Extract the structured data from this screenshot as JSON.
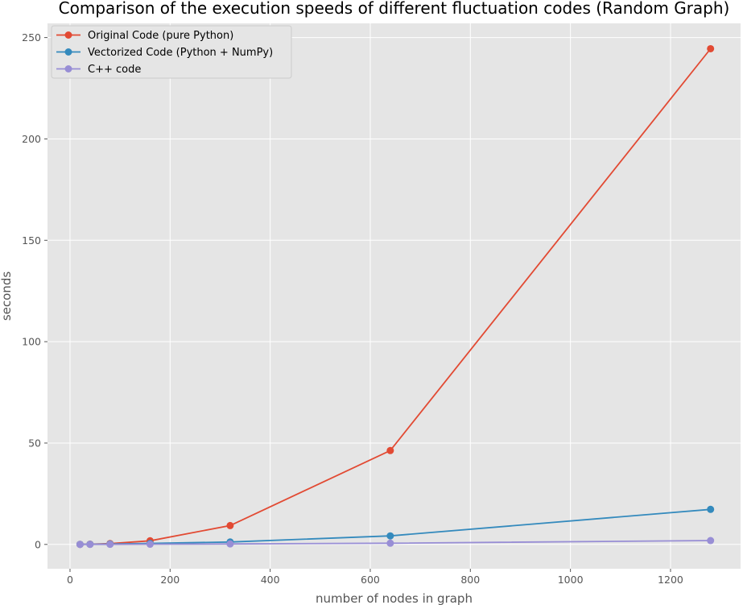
{
  "chart_data": {
    "type": "line",
    "title": "Comparison of the execution speeds of different fluctuation codes (Random Graph)",
    "xlabel": "number of nodes in graph",
    "ylabel": "seconds",
    "xlim": [
      -45,
      1340
    ],
    "ylim": [
      -12,
      257
    ],
    "xticks": [
      0,
      200,
      400,
      600,
      800,
      1000,
      1200
    ],
    "yticks": [
      0,
      50,
      100,
      150,
      200,
      250
    ],
    "grid": true,
    "legend_position": "top-left",
    "series": [
      {
        "name": "Original Code (pure Python)",
        "color": "#E24A33",
        "x": [
          20,
          40,
          80,
          160,
          320,
          640,
          1280
        ],
        "y": [
          0.02,
          0.1,
          0.4,
          1.8,
          9.3,
          46.3,
          244.5
        ]
      },
      {
        "name": "Vectorized Code (Python + NumPy)",
        "color": "#348ABD",
        "x": [
          20,
          40,
          80,
          160,
          320,
          640,
          1280
        ],
        "y": [
          0.03,
          0.08,
          0.2,
          0.5,
          1.2,
          4.2,
          17.3
        ]
      },
      {
        "name": "C++ code",
        "color": "#988ED5",
        "x": [
          20,
          40,
          80,
          160,
          320,
          640,
          1280
        ],
        "y": [
          0.01,
          0.02,
          0.05,
          0.1,
          0.25,
          0.6,
          1.9
        ]
      }
    ]
  }
}
